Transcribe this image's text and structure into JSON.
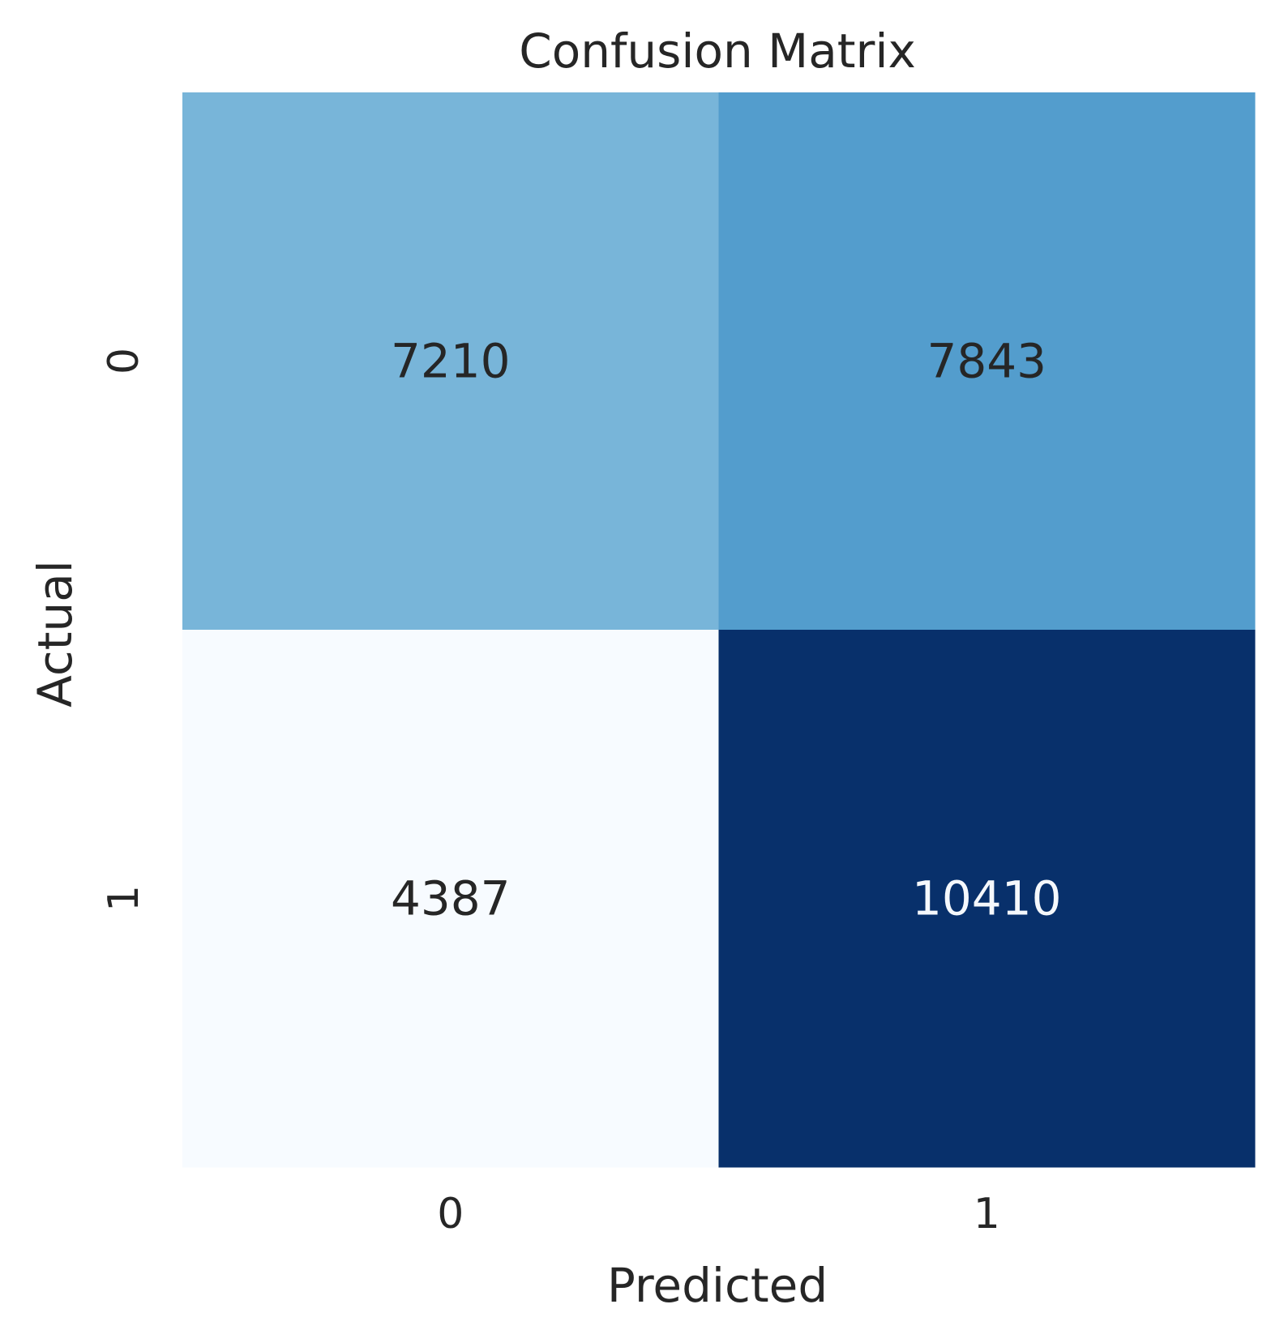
{
  "chart_data": {
    "type": "heatmap",
    "title": "Confusion Matrix",
    "xlabel": "Predicted",
    "ylabel": "Actual",
    "x_categories": [
      "0",
      "1"
    ],
    "y_categories": [
      "0",
      "1"
    ],
    "matrix": [
      [
        7210,
        7843
      ],
      [
        4387,
        10410
      ]
    ],
    "colormap": "Blues",
    "colorbar": false,
    "grid": false
  }
}
